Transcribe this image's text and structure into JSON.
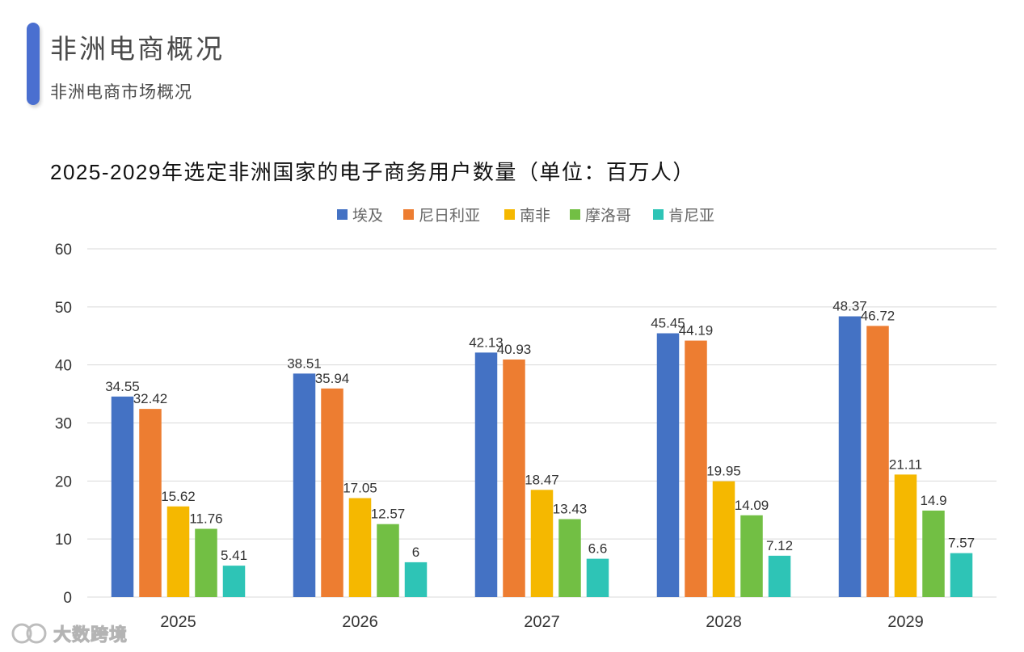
{
  "header": {
    "title": "非洲电商概况",
    "subtitle": "非洲电商市场概况"
  },
  "watermark": {
    "text": "大数跨境"
  },
  "colors": {
    "accent": "#4a6fd0",
    "axis_text": "#333333",
    "grid": "#d9d9d9"
  },
  "chart_data": {
    "type": "bar",
    "title": "2025-2029年选定非洲国家的电子商务用户数量（单位：百万人）",
    "xlabel": "",
    "ylabel": "",
    "ylim": [
      0,
      60
    ],
    "yticks": [
      0,
      10,
      20,
      30,
      40,
      50,
      60
    ],
    "grid": true,
    "legend_position": "top-center",
    "categories": [
      "2025",
      "2026",
      "2027",
      "2028",
      "2029"
    ],
    "series": [
      {
        "name": "埃及",
        "color": "#4472c4",
        "values": [
          34.55,
          38.51,
          42.13,
          45.45,
          48.37
        ]
      },
      {
        "name": "尼日利亚",
        "color": "#ed7d31",
        "values": [
          32.42,
          35.94,
          40.93,
          44.19,
          46.72
        ]
      },
      {
        "name": "南非",
        "color": "#f5b800",
        "values": [
          15.62,
          17.05,
          18.47,
          19.95,
          21.11
        ]
      },
      {
        "name": "摩洛哥",
        "color": "#72bf44",
        "values": [
          11.76,
          12.57,
          13.43,
          14.09,
          14.9
        ]
      },
      {
        "name": "肯尼亚",
        "color": "#2ec4b6",
        "values": [
          5.41,
          6,
          6.6,
          7.12,
          7.57
        ]
      }
    ]
  }
}
